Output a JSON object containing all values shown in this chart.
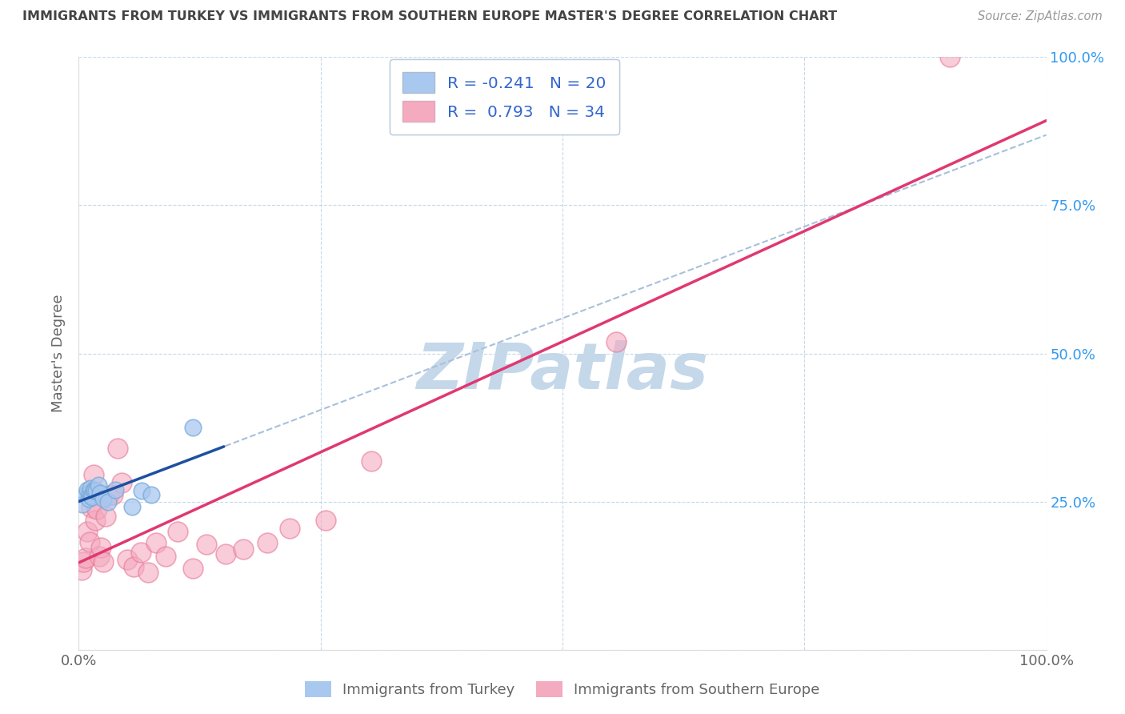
{
  "title": "IMMIGRANTS FROM TURKEY VS IMMIGRANTS FROM SOUTHERN EUROPE MASTER'S DEGREE CORRELATION CHART",
  "source": "Source: ZipAtlas.com",
  "ylabel": "Master's Degree",
  "xlim": [
    0,
    1
  ],
  "ylim": [
    0,
    1
  ],
  "ytick_values": [
    0.0,
    0.25,
    0.5,
    0.75,
    1.0
  ],
  "ytick_labels_right": [
    "",
    "25.0%",
    "50.0%",
    "75.0%",
    "100.0%"
  ],
  "xtick_values": [
    0.0,
    0.25,
    0.5,
    0.75,
    1.0
  ],
  "xtick_labels": [
    "0.0%",
    "",
    "",
    "",
    "100.0%"
  ],
  "legend_text_1": "R = -0.241   N = 20",
  "legend_text_2": "R =  0.793   N = 34",
  "turkey_color_fill": "#A8C8F0",
  "turkey_color_edge": "#7AAAD8",
  "southern_color_fill": "#F4AABF",
  "southern_color_edge": "#E87898",
  "turkey_line_color": "#1E50A0",
  "southern_line_color": "#E03870",
  "dashed_line_color": "#A8C0DC",
  "watermark_color": "#C5D8EA",
  "grid_color": "#C8D8E8",
  "background_color": "#FFFFFF",
  "legend_text_color": "#3366CC",
  "legend_label_turkey": "Immigrants from Turkey",
  "legend_label_south": "Immigrants from Southern Europe",
  "turkey_color_legend": "#A8C8F0",
  "southern_color_legend": "#F4AABF",
  "turkey_R": -0.241,
  "turkey_N": 20,
  "south_R": 0.793,
  "south_N": 34,
  "turkey_points_x": [
    0.004,
    0.007,
    0.009,
    0.01,
    0.011,
    0.012,
    0.013,
    0.014,
    0.015,
    0.016,
    0.018,
    0.02,
    0.022,
    0.025,
    0.03,
    0.038,
    0.055,
    0.065,
    0.075,
    0.118
  ],
  "turkey_points_y": [
    0.245,
    0.262,
    0.27,
    0.255,
    0.265,
    0.272,
    0.26,
    0.258,
    0.27,
    0.268,
    0.268,
    0.278,
    0.265,
    0.255,
    0.25,
    0.27,
    0.242,
    0.268,
    0.262,
    0.375
  ],
  "south_points_x": [
    0.003,
    0.005,
    0.007,
    0.009,
    0.011,
    0.013,
    0.015,
    0.017,
    0.019,
    0.021,
    0.023,
    0.025,
    0.028,
    0.031,
    0.035,
    0.04,
    0.044,
    0.05,
    0.057,
    0.064,
    0.072,
    0.08,
    0.09,
    0.102,
    0.118,
    0.132,
    0.152,
    0.17,
    0.195,
    0.218,
    0.255,
    0.302,
    0.555,
    0.9
  ],
  "south_points_y": [
    0.135,
    0.148,
    0.155,
    0.2,
    0.182,
    0.24,
    0.295,
    0.218,
    0.238,
    0.158,
    0.172,
    0.148,
    0.225,
    0.26,
    0.262,
    0.34,
    0.282,
    0.152,
    0.14,
    0.165,
    0.13,
    0.18,
    0.158,
    0.2,
    0.138,
    0.178,
    0.162,
    0.17,
    0.18,
    0.205,
    0.218,
    0.318,
    0.52,
    1.0
  ]
}
